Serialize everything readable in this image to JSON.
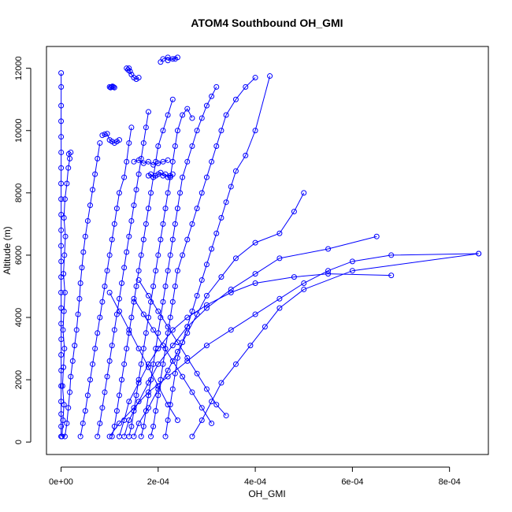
{
  "chart_data": {
    "type": "scatter",
    "title": "ATOM4 Southbound OH_GMI",
    "xlabel": "OH_GMI",
    "ylabel": "Altitude (m)",
    "xlim": [
      -3e-05,
      0.00088
    ],
    "ylim": [
      -400,
      12700
    ],
    "x_ticks": [
      0,
      0.0002,
      0.0004,
      0.0006,
      0.0008
    ],
    "x_tick_labels": [
      "0e+00",
      "2e-04",
      "4e-04",
      "6e-04",
      "8e-04"
    ],
    "y_ticks": [
      0,
      2000,
      4000,
      6000,
      8000,
      10000,
      12000
    ],
    "y_tick_labels": [
      "0",
      "2000",
      "4000",
      "6000",
      "8000",
      "10000",
      "12000"
    ],
    "grid": false,
    "legend": "none",
    "series_color": "#0000ff",
    "marker": "open-circle",
    "profiles": [
      {
        "x": [
          1e-07,
          2e-07,
          3e-07,
          1e-07,
          2e-07,
          3e-07,
          2e-07,
          4e-07,
          2e-07,
          3e-07,
          1e-07,
          2e-07,
          3e-07,
          1e-07,
          2e-07,
          3e-07,
          2e-07,
          1e-07,
          2e-07,
          3e-07,
          2e-07,
          1e-07,
          2e-07,
          3e-07,
          2e-07
        ],
        "y": [
          180,
          500,
          900,
          1300,
          1800,
          2300,
          2800,
          3300,
          3800,
          4300,
          4800,
          5300,
          5800,
          6300,
          6800,
          7300,
          7800,
          8300,
          8800,
          9300,
          9800,
          10300,
          10800,
          11400,
          11850
        ]
      },
      {
        "x": [
          2e-06,
          4e-06,
          6e-06,
          3e-06,
          5e-06,
          7e-06,
          4e-06,
          6e-06,
          8e-06,
          5e-06,
          7e-06,
          9e-06,
          6e-06,
          8e-06,
          1.2e-05,
          1.5e-05,
          1.8e-05,
          1.6e-05,
          2e-05
        ],
        "y": [
          180,
          700,
          1200,
          1800,
          2400,
          3000,
          3600,
          4200,
          4800,
          5400,
          6000,
          6600,
          7200,
          7800,
          8300,
          8800,
          9100,
          9250,
          9300
        ]
      },
      {
        "x": [
          8e-06,
          1.2e-05,
          1.5e-05,
          1.8e-05,
          2e-05,
          2.4e-05,
          2.8e-05,
          3.2e-05,
          3.5e-05,
          3.8e-05,
          4e-05,
          4.3e-05,
          4.6e-05,
          5e-05,
          5.5e-05,
          6e-05,
          6.5e-05,
          7e-05,
          7.5e-05,
          8e-05
        ],
        "y": [
          180,
          600,
          1100,
          1600,
          2100,
          2600,
          3100,
          3600,
          4100,
          4600,
          5100,
          5600,
          6100,
          6600,
          7100,
          7600,
          8100,
          8600,
          9100,
          9600
        ]
      },
      {
        "x": [
          4e-05,
          4.5e-05,
          5e-05,
          5.5e-05,
          6e-05,
          6.5e-05,
          7e-05,
          7.5e-05,
          8e-05,
          8.5e-05,
          9e-05,
          9.5e-05,
          0.0001,
          0.000105,
          0.00011,
          0.000115,
          0.00012,
          0.00013,
          0.000135,
          0.00014,
          0.000145
        ],
        "y": [
          180,
          600,
          1000,
          1500,
          2000,
          2500,
          3000,
          3500,
          4000,
          4500,
          5000,
          5500,
          6000,
          6500,
          7000,
          7500,
          8000,
          8500,
          9000,
          9600,
          10100
        ]
      },
      {
        "x": [
          7.5e-05,
          8e-05,
          8.5e-05,
          9e-05,
          9.5e-05,
          0.0001,
          0.000105,
          0.00011,
          0.000115,
          0.00012,
          0.000125,
          0.00013,
          0.000135,
          0.00014,
          0.000145,
          0.00015,
          0.000155,
          0.00016,
          0.000165,
          0.00017,
          0.000175,
          0.00018
        ],
        "y": [
          180,
          600,
          1100,
          1600,
          2100,
          2600,
          3100,
          3600,
          4100,
          4600,
          5100,
          5600,
          6100,
          6600,
          7100,
          7600,
          8100,
          8600,
          9100,
          9600,
          10100,
          10600
        ]
      },
      {
        "x": [
          0.000105,
          0.00011,
          0.000115,
          0.00012,
          0.000125,
          0.00013,
          0.000135,
          0.00014,
          0.000145,
          0.00015,
          0.000155,
          0.00016,
          0.000165,
          0.00017,
          0.000175,
          0.00018,
          0.000185,
          0.00019,
          0.000195,
          0.0002,
          0.00021,
          0.00022,
          0.00023
        ],
        "y": [
          180,
          500,
          1000,
          1500,
          2000,
          2500,
          3000,
          3500,
          4000,
          4500,
          5000,
          5500,
          6000,
          6500,
          7000,
          7500,
          8000,
          8500,
          9000,
          9500,
          10000,
          10500,
          11000
        ]
      },
      {
        "x": [
          0.00014,
          0.000145,
          0.00015,
          0.000155,
          0.00016,
          0.000165,
          0.00017,
          0.000175,
          0.00018,
          0.000185,
          0.00019,
          0.000195,
          0.0002,
          0.000205,
          0.00021,
          0.000215,
          0.00022,
          0.000225,
          0.00023,
          0.000235,
          0.00024,
          0.00025,
          0.00026,
          0.00027
        ],
        "y": [
          180,
          500,
          1000,
          1500,
          2000,
          2500,
          3000,
          3500,
          4000,
          4500,
          5000,
          5500,
          6000,
          6500,
          7000,
          7500,
          8000,
          8500,
          9000,
          9500,
          10000,
          10500,
          10700,
          10400
        ]
      },
      {
        "x": [
          0.000165,
          0.00017,
          0.000175,
          0.00018,
          0.000185,
          0.00019,
          0.000195,
          0.0002,
          0.000205,
          0.00021,
          0.000215,
          0.00022,
          0.000225,
          0.00023,
          0.000235,
          0.00024,
          0.000245,
          0.00025,
          0.00026,
          0.00027,
          0.00028,
          0.00029,
          0.0003,
          0.00031,
          0.00032
        ],
        "y": [
          180,
          500,
          1000,
          1500,
          2000,
          2500,
          3000,
          3500,
          4000,
          4500,
          5000,
          5500,
          6000,
          6500,
          7000,
          7500,
          8000,
          8500,
          9000,
          9500,
          10000,
          10400,
          10800,
          11100,
          11400
        ]
      },
      {
        "x": [
          0.000185,
          0.00019,
          0.000195,
          0.0002,
          0.000205,
          0.00021,
          0.000215,
          0.00022,
          0.000225,
          0.00023,
          0.000235,
          0.00024,
          0.00025,
          0.00026,
          0.00027,
          0.00028,
          0.00029,
          0.0003,
          0.00031,
          0.00032,
          0.00033,
          0.00034,
          0.00036,
          0.00038,
          0.0004
        ],
        "y": [
          180,
          500,
          1000,
          1500,
          2000,
          2500,
          3000,
          3500,
          4000,
          4500,
          5000,
          5500,
          6000,
          6500,
          7000,
          7500,
          8000,
          8500,
          9000,
          9500,
          10000,
          10500,
          11000,
          11400,
          11700
        ]
      },
      {
        "x": [
          0.000215,
          0.00022,
          0.000225,
          0.00023,
          0.000235,
          0.00024,
          0.00025,
          0.00026,
          0.00027,
          0.00028,
          0.00029,
          0.0003,
          0.00031,
          0.00032,
          0.00033,
          0.00034,
          0.00035,
          0.00036,
          0.00038,
          0.0004,
          0.00043
        ],
        "y": [
          180,
          700,
          1200,
          1700,
          2200,
          2700,
          3200,
          3700,
          4200,
          4700,
          5200,
          5700,
          6200,
          6700,
          7200,
          7700,
          8200,
          8700,
          9200,
          10000,
          11750
        ]
      },
      {
        "x": [
          0.00015,
          0.00016,
          0.00018,
          0.0002,
          0.00022,
          0.00024,
          0.00026,
          0.00028,
          0.0003,
          0.00033,
          0.00036,
          0.0004,
          0.00045,
          0.00048,
          0.0005
        ],
        "y": [
          180,
          600,
          1100,
          1700,
          2300,
          2900,
          3500,
          4100,
          4700,
          5300,
          5900,
          6400,
          6700,
          7400,
          8000
        ]
      },
      {
        "x": [
          0.00013,
          0.00014,
          0.00016,
          0.00018,
          0.0002,
          0.00023,
          0.00026,
          0.0003,
          0.00035,
          0.0004,
          0.00045,
          0.00055,
          0.00065
        ],
        "y": [
          180,
          700,
          1300,
          1900,
          2500,
          3100,
          3700,
          4300,
          4900,
          5400,
          5900,
          6200,
          6600
        ]
      },
      {
        "x": [
          0.00012,
          0.00013,
          0.00014,
          0.00016,
          0.00018,
          0.0002,
          0.00023,
          0.00026,
          0.0003,
          0.00035,
          0.0004,
          0.00048,
          0.00055,
          0.00068
        ],
        "y": [
          180,
          700,
          1300,
          1900,
          2500,
          3000,
          3600,
          4000,
          4400,
          4800,
          5100,
          5300,
          5400,
          5350
        ]
      },
      {
        "x": [
          0.0001,
          0.00012,
          0.00015,
          0.00018,
          0.00022,
          0.00026,
          0.0003,
          0.00035,
          0.0004,
          0.00045,
          0.0005,
          0.00055,
          0.0006,
          0.00068,
          0.00086
        ],
        "y": [
          180,
          600,
          1100,
          1600,
          2100,
          2600,
          3100,
          3600,
          4100,
          4600,
          5100,
          5500,
          5800,
          6000,
          6050
        ]
      },
      {
        "x": [
          0.00027,
          0.00029,
          0.00031,
          0.00033,
          0.00036,
          0.00039,
          0.00042,
          0.00045,
          0.0005,
          0.0006,
          0.00086
        ],
        "y": [
          180,
          700,
          1300,
          1900,
          2500,
          3100,
          3700,
          4300,
          4900,
          5500,
          6050
        ]
      },
      {
        "x": [
          0.00034,
          0.00032,
          0.0003,
          0.00028,
          0.00026,
          0.00024,
          0.00022,
          0.0002,
          0.00018,
          0.00016
        ],
        "y": [
          850,
          1200,
          1700,
          2200,
          2700,
          3200,
          3700,
          4200,
          4700,
          5200
        ]
      },
      {
        "x": [
          0.00031,
          0.00029,
          0.00027,
          0.00025,
          0.00023,
          0.00021,
          0.00019,
          0.00017,
          0.00015
        ],
        "y": [
          600,
          1100,
          1600,
          2100,
          2600,
          3100,
          3600,
          4100,
          4600
        ]
      },
      {
        "x": [
          0.00024,
          0.00022,
          0.0002,
          0.00018,
          0.00016,
          0.00014,
          0.00012,
          0.0001
        ],
        "y": [
          700,
          1200,
          1800,
          2400,
          3000,
          3600,
          4200,
          4800
        ]
      },
      {
        "x": [
          0.0001,
          0.000102,
          0.000104,
          0.000106,
          0.000108,
          0.00011
        ],
        "y": [
          11400,
          11380,
          11400,
          11420,
          11400,
          11380
        ]
      },
      {
        "x": [
          0.000135,
          0.000138,
          0.00014,
          0.000142,
          0.000145,
          0.00015,
          0.000155,
          0.00016
        ],
        "y": [
          12000,
          11950,
          12000,
          11900,
          11800,
          11700,
          11650,
          11700
        ]
      },
      {
        "x": [
          0.000205,
          0.00021,
          0.00022,
          0.00023,
          0.00024,
          0.000235,
          0.00022
        ],
        "y": [
          12200,
          12300,
          12350,
          12300,
          12350,
          12300,
          12250
        ]
      },
      {
        "x": [
          8.5e-05,
          9e-05,
          9.5e-05,
          0.0001,
          0.000105,
          0.00011,
          0.000115,
          0.00012
        ],
        "y": [
          9850,
          9880,
          9900,
          9700,
          9650,
          9600,
          9650,
          9700
        ]
      },
      {
        "x": [
          0.00018,
          0.000185,
          0.00019,
          0.000195,
          0.0002,
          0.000205,
          0.00021,
          0.000215,
          0.00022,
          0.000225,
          0.00023
        ],
        "y": [
          8550,
          8600,
          8500,
          8550,
          8600,
          8650,
          8550,
          8600,
          8500,
          8550,
          8600
        ]
      },
      {
        "x": [
          0.00015,
          0.00016,
          0.00017,
          0.00018,
          0.00019,
          0.0002,
          0.00021,
          0.00022
        ],
        "y": [
          9000,
          9050,
          8950,
          9000,
          8900,
          8950,
          9000,
          9050
        ]
      }
    ]
  }
}
